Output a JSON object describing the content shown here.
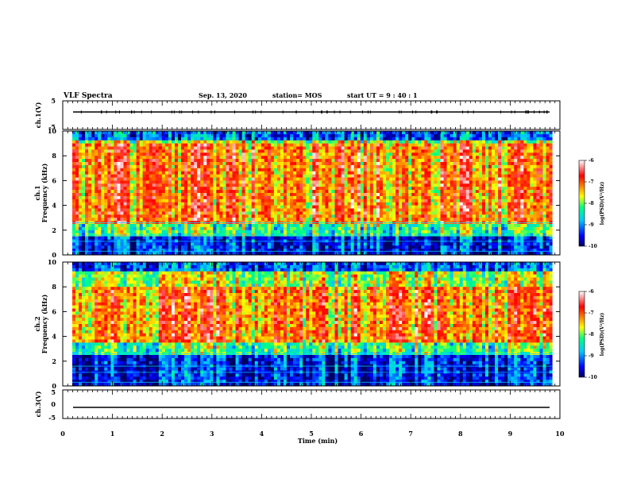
{
  "header": {
    "title": "VLF Spectra",
    "date": "Sep. 13, 2020",
    "station": "station= MOS",
    "start": "start  UT  =   9 : 40 : 1"
  },
  "chart_data": [
    {
      "type": "line",
      "panel": "ch1-waveform",
      "ylabel": "ch.1(V)",
      "ylim": [
        -5,
        5
      ],
      "yticks": [
        "5",
        "-5"
      ],
      "xlim": [
        0,
        10
      ],
      "series": [
        {
          "x": [
            0,
            9.85
          ],
          "y": [
            0,
            0
          ]
        }
      ]
    },
    {
      "type": "heatmap",
      "panel": "ch1-spectrogram",
      "ylabel": "ch.1\nFrequency (kHz)",
      "ylim": [
        0,
        10
      ],
      "yticks": [
        "0",
        "2",
        "4",
        "6",
        "8",
        "10"
      ],
      "xlim": [
        0,
        10
      ],
      "data_x_end": 9.85,
      "intense_band_khz": [
        2.5,
        9.0
      ],
      "colorbar": {
        "label": "log(PSD)(V²/Hz)",
        "ticks": [
          "-6",
          "-7",
          "-8",
          "-9",
          "-10"
        ],
        "range": [
          -10,
          -6
        ]
      }
    },
    {
      "type": "heatmap",
      "panel": "ch2-spectrogram",
      "ylabel": "ch.2\nFrequency (kHz)",
      "ylim": [
        0,
        10
      ],
      "yticks": [
        "0",
        "2",
        "4",
        "6",
        "8",
        "10"
      ],
      "xlim": [
        0,
        10
      ],
      "data_x_end": 9.85,
      "intense_band_khz": [
        3.5,
        8.0
      ],
      "colorbar": {
        "label": "log(PSD)(V²/Hz)",
        "ticks": [
          "-6",
          "-7",
          "-8",
          "-9",
          "-10"
        ],
        "range": [
          -10,
          -6
        ]
      }
    },
    {
      "type": "line",
      "panel": "ch3-waveform",
      "ylabel": "ch.3(V)",
      "ylim": [
        -5,
        5
      ],
      "yticks": [
        "5",
        "0",
        "-5"
      ],
      "xlim": [
        0,
        10
      ],
      "series": [
        {
          "x": [
            0,
            9.85
          ],
          "y": [
            -1.2,
            -1.2
          ]
        }
      ]
    }
  ],
  "xaxis": {
    "label": "Time  (min)",
    "ticks": [
      "0",
      "1",
      "2",
      "3",
      "4",
      "5",
      "6",
      "7",
      "8",
      "9",
      "10"
    ]
  },
  "colors": {
    "colormap": [
      "#000080",
      "#0000ff",
      "#00c8ff",
      "#00ff80",
      "#ffff00",
      "#ff8000",
      "#ff0000",
      "#ffffff"
    ]
  }
}
